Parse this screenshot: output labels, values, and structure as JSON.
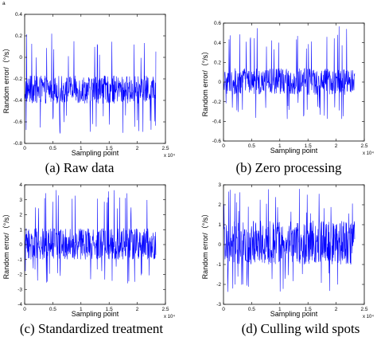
{
  "figure": {
    "stray_label": "a",
    "sci_exponent_label": "x 10⁴",
    "signal_color": "#0000ff",
    "axes_color": "#000000"
  },
  "chart_data": [
    {
      "type": "line",
      "caption": "(a) Raw data",
      "xlabel": "Sampling point",
      "ylabel": "Random error/（°/s）",
      "xlim": [
        0,
        2.5
      ],
      "ylim": [
        -0.8,
        0.4
      ],
      "xticks": [
        "0",
        "0.5",
        "1",
        "1.5",
        "2",
        "2.5"
      ],
      "yticks": [
        "-0.8",
        "-0.6",
        "-0.4",
        "-0.2",
        "0",
        "0.2",
        "0.4"
      ],
      "x_multiplier": "x 10⁴",
      "series": [
        {
          "x_range": [
            0,
            2.33
          ],
          "mean": -0.3,
          "band": [
            -0.43,
            -0.17
          ],
          "spike_range": [
            -0.72,
            0.23
          ]
        }
      ]
    },
    {
      "type": "line",
      "caption": "(b) Zero processing",
      "xlabel": "Sampling point",
      "ylabel": "Random error/（°/s）",
      "xlim": [
        0,
        2.5
      ],
      "ylim": [
        -0.6,
        0.6
      ],
      "xticks": [
        "0",
        "0.5",
        "1",
        "1.5",
        "2",
        "2.5"
      ],
      "yticks": [
        "-0.6",
        "-0.4",
        "-0.2",
        "0",
        "0.2",
        "0.4",
        "0.6"
      ],
      "x_multiplier": "x 10⁴",
      "series": [
        {
          "x_range": [
            0,
            2.33
          ],
          "mean": 0.0,
          "band": [
            -0.13,
            0.14
          ],
          "spike_range": [
            -0.38,
            0.57
          ]
        }
      ]
    },
    {
      "type": "line",
      "caption": "(c) Standardized treatment",
      "xlabel": "Sampling point",
      "ylabel": "Random error/（°/s）",
      "xlim": [
        0,
        2.5
      ],
      "ylim": [
        -4,
        4
      ],
      "xticks": [
        "0",
        "0.5",
        "1",
        "1.5",
        "2",
        "2.5"
      ],
      "yticks": [
        "-4",
        "-3",
        "-2",
        "-1",
        "0",
        "1",
        "2",
        "3",
        "4"
      ],
      "x_multiplier": "x 10⁴",
      "series": [
        {
          "x_range": [
            0,
            2.33
          ],
          "mean": 0.0,
          "band": [
            -1.0,
            1.1
          ],
          "spike_range": [
            -2.6,
            3.7
          ]
        }
      ]
    },
    {
      "type": "line",
      "caption": "(d) Culling wild spots",
      "xlabel": "Sampling point",
      "ylabel": "Random error/（°/s）",
      "xlim": [
        0,
        2.5
      ],
      "ylim": [
        -3,
        3
      ],
      "xticks": [
        "0",
        "0.5",
        "1",
        "1.5",
        "2",
        "2.5"
      ],
      "yticks": [
        "-3",
        "-2",
        "-1",
        "0",
        "1",
        "2",
        "3"
      ],
      "x_multiplier": "x 10⁴",
      "series": [
        {
          "x_range": [
            0,
            2.33
          ],
          "mean": 0.0,
          "band": [
            -1.0,
            1.2
          ],
          "spike_range": [
            -2.6,
            2.8
          ]
        }
      ]
    }
  ]
}
